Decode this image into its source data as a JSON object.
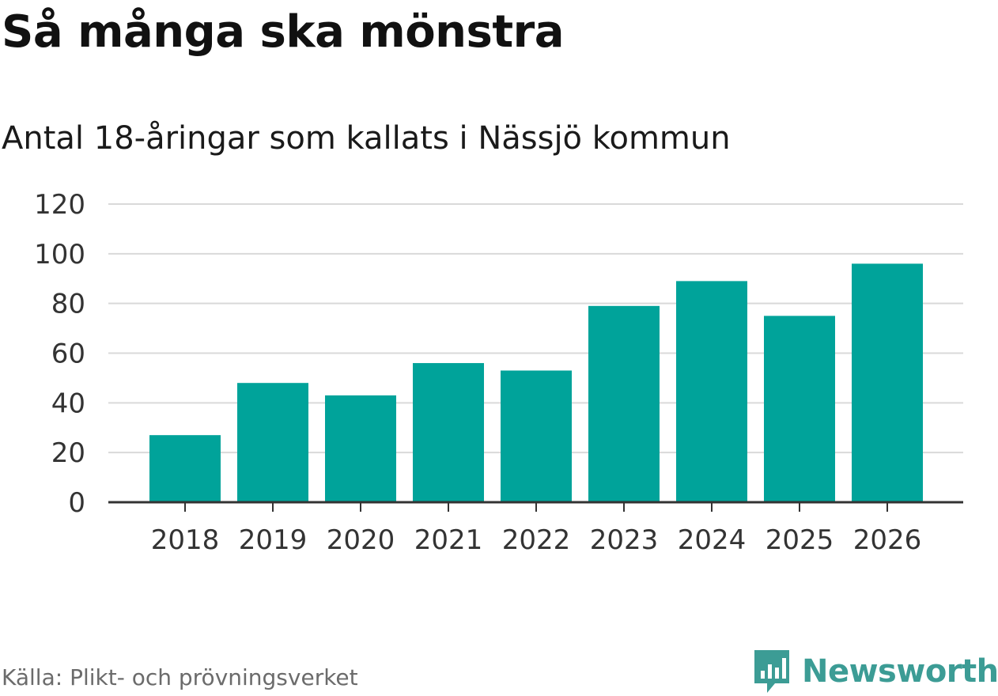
{
  "chart_data": {
    "type": "bar",
    "title": "Så många ska mönstra",
    "subtitle": "Antal 18-åringar som kallats i Nässjö kommun",
    "categories": [
      "2018",
      "2019",
      "2020",
      "2021",
      "2022",
      "2023",
      "2024",
      "2025",
      "2026"
    ],
    "values": [
      27,
      48,
      43,
      56,
      53,
      79,
      89,
      75,
      96
    ],
    "ylim": [
      0,
      120
    ],
    "yticks": [
      0,
      20,
      40,
      60,
      80,
      100,
      120
    ],
    "xlabel": "",
    "ylabel": "",
    "grid": true,
    "bar_color": "#00a39a"
  },
  "footer": {
    "source": "Källa: Plikt- och prövningsverket",
    "brand": "Newsworthy",
    "brand_icon": "newsworthy-logo-icon",
    "brand_color": "#3c9c95"
  }
}
